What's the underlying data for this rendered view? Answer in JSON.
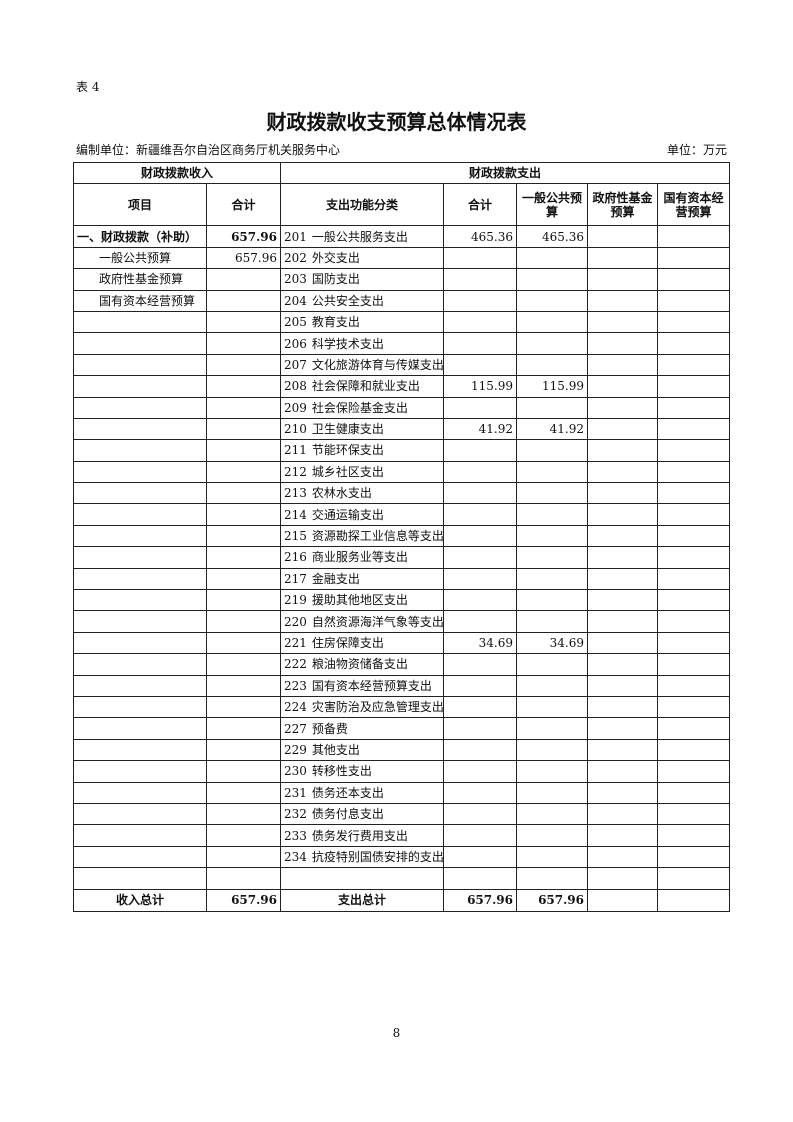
{
  "header": {
    "table_no": "表 4",
    "title": "财政拨款收支预算总体情况表",
    "unit_org": "编制单位：新疆维吾尔自治区商务厅机关服务中心",
    "unit": "单位：万元"
  },
  "table": {
    "group_headers": [
      "财政拨款收入",
      "财政拨款支出"
    ],
    "columns": [
      "项目",
      "合计",
      "支出功能分类",
      "合计",
      "一般公共预算",
      "政府性基金预算",
      "国有资本经营预算"
    ],
    "income_rows": [
      {
        "item": "一、财政拨款（补助）",
        "total": 657.96
      },
      {
        "item": "一般公共预算",
        "total": 657.96
      },
      {
        "item": "政府性基金预算"
      },
      {
        "item": "国有资本经营预算"
      }
    ],
    "expense_rows": [
      {
        "code": "201",
        "name": "一般公共服务支出",
        "total": 465.36,
        "general": 465.36
      },
      {
        "code": "202",
        "name": "外交支出"
      },
      {
        "code": "203",
        "name": "国防支出"
      },
      {
        "code": "204",
        "name": "公共安全支出"
      },
      {
        "code": "205",
        "name": "教育支出"
      },
      {
        "code": "206",
        "name": "科学技术支出"
      },
      {
        "code": "207",
        "name": "文化旅游体育与传媒支出"
      },
      {
        "code": "208",
        "name": "社会保障和就业支出",
        "total": 115.99,
        "general": 115.99
      },
      {
        "code": "209",
        "name": "社会保险基金支出"
      },
      {
        "code": "210",
        "name": "卫生健康支出",
        "total": 41.92,
        "general": 41.92
      },
      {
        "code": "211",
        "name": "节能环保支出"
      },
      {
        "code": "212",
        "name": "城乡社区支出"
      },
      {
        "code": "213",
        "name": "农林水支出"
      },
      {
        "code": "214",
        "name": "交通运输支出"
      },
      {
        "code": "215",
        "name": "资源勘探工业信息等支出"
      },
      {
        "code": "216",
        "name": "商业服务业等支出"
      },
      {
        "code": "217",
        "name": "金融支出"
      },
      {
        "code": "219",
        "name": "援助其他地区支出"
      },
      {
        "code": "220",
        "name": "自然资源海洋气象等支出"
      },
      {
        "code": "221",
        "name": "住房保障支出",
        "total": 34.69,
        "general": 34.69
      },
      {
        "code": "222",
        "name": "粮油物资储备支出"
      },
      {
        "code": "223",
        "name": "国有资本经营预算支出"
      },
      {
        "code": "224",
        "name": "灾害防治及应急管理支出"
      },
      {
        "code": "227",
        "name": "预备费"
      },
      {
        "code": "229",
        "name": "其他支出"
      },
      {
        "code": "230",
        "name": "转移性支出"
      },
      {
        "code": "231",
        "name": "债务还本支出"
      },
      {
        "code": "232",
        "name": "债务付息支出"
      },
      {
        "code": "233",
        "name": "债务发行费用支出"
      },
      {
        "code": "234",
        "name": "抗疫特别国债安排的支出"
      }
    ],
    "footer": {
      "income_label": "收入总计",
      "income_total": 657.96,
      "expense_label": "支出总计",
      "expense_total": 657.96,
      "general_total": 657.96
    }
  },
  "page_number": "8"
}
